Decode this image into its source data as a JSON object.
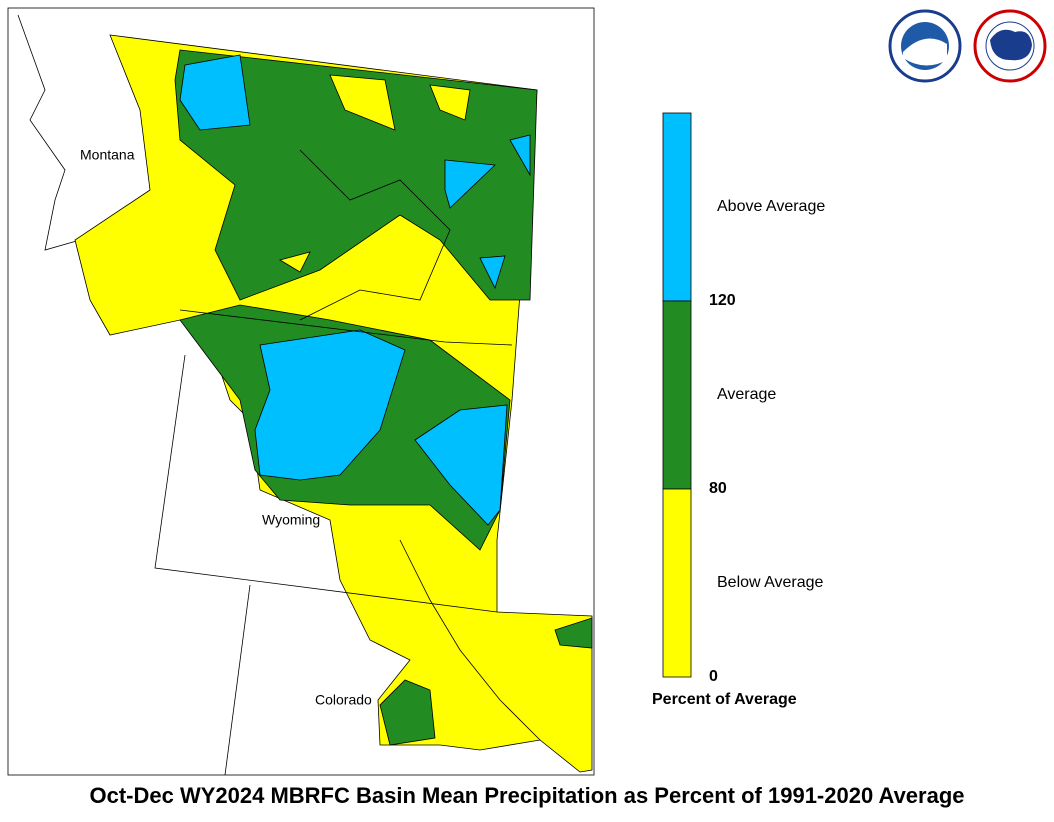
{
  "map": {
    "title": "Oct-Dec WY2024 MBRFC Basin Mean Precipitation as Percent of 1991-2020 Average",
    "state_labels": [
      "Montana",
      "Wyoming",
      "Colorado"
    ]
  },
  "legend": {
    "categories": [
      {
        "label": "Above Average",
        "color": "#00bfff"
      },
      {
        "label": "Average",
        "color": "#228b22"
      },
      {
        "label": "Below Average",
        "color": "#ffff00"
      }
    ],
    "ticks": [
      120,
      80,
      0
    ],
    "axis_label": "Percent of Average"
  }
}
